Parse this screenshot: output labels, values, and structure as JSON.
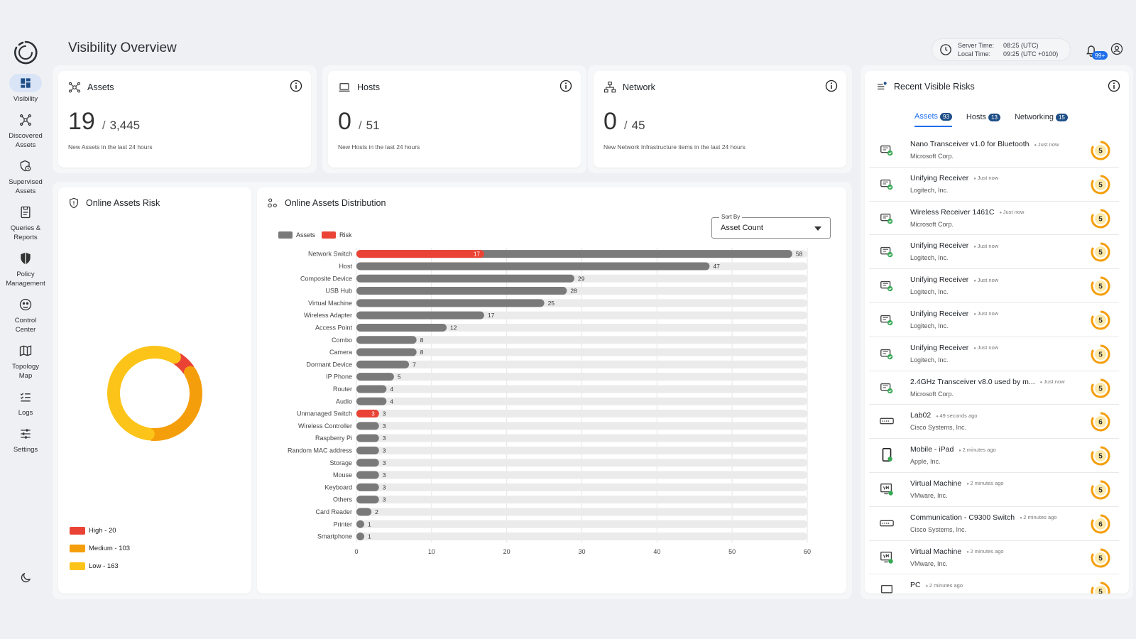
{
  "page": {
    "title": "Visibility Overview"
  },
  "nav": [
    {
      "label": "Visibility",
      "icon": "dashboard-icon",
      "active": true
    },
    {
      "label": "Discovered\nAssets",
      "icon": "network-nodes-icon"
    },
    {
      "label": "Supervised\nAssets",
      "icon": "shield-clock-icon"
    },
    {
      "label": "Queries &\nReports",
      "icon": "report-icon"
    },
    {
      "label": "Policy\nManagement",
      "icon": "policy-shield-icon"
    },
    {
      "label": "Control\nCenter",
      "icon": "control-center-icon"
    },
    {
      "label": "Topology\nMap",
      "icon": "map-icon"
    },
    {
      "label": "Logs",
      "icon": "logs-icon"
    },
    {
      "label": "Settings",
      "icon": "sliders-icon"
    }
  ],
  "header": {
    "server_label": "Server Time:",
    "server_value": "08:25 (UTC)",
    "local_label": "Local Time:",
    "local_value": "09:25 (UTC +0100)",
    "notifications": "99+"
  },
  "cards": {
    "assets": {
      "title": "Assets",
      "value": "19",
      "total": "3,445",
      "subtitle": "New Assets in the last 24 hours"
    },
    "hosts": {
      "title": "Hosts",
      "value": "0",
      "total": "51",
      "subtitle": "New Hosts in the last 24 hours"
    },
    "network": {
      "title": "Network",
      "value": "0",
      "total": "45",
      "subtitle": "New Network Infrastructure items in the last 24 hours"
    }
  },
  "risk_panel": {
    "title": "Online Assets Risk",
    "legend": [
      {
        "label": "High - 20",
        "value": 20,
        "color": "#ea4335"
      },
      {
        "label": "Medium - 103",
        "value": 103,
        "color": "#f59e0b"
      },
      {
        "label": "Low - 163",
        "value": 163,
        "color": "#fcc419"
      }
    ]
  },
  "distribution": {
    "title": "Online Assets Distribution",
    "sort_label": "Sort By",
    "sort_value": "Asset Count"
  },
  "chart_data": {
    "type": "bar",
    "orientation": "horizontal",
    "categories": [
      "Network Switch",
      "Host",
      "Composite Device",
      "USB Hub",
      "Virtual Machine",
      "Wireless Adapter",
      "Access Point",
      "Combo",
      "Camera",
      "Dormant Device",
      "IP Phone",
      "Router",
      "Audio",
      "Unmanaged Switch",
      "Wireless Controller",
      "Raspberry Pi",
      "Random MAC address",
      "Storage",
      "Mouse",
      "Keyboard",
      "Others",
      "Card Reader",
      "Printer",
      "Smartphone"
    ],
    "series": [
      {
        "name": "Assets",
        "color": "#7a7a7a",
        "values": [
          58,
          47,
          29,
          28,
          25,
          17,
          12,
          8,
          8,
          7,
          5,
          4,
          4,
          3,
          3,
          3,
          3,
          3,
          3,
          3,
          3,
          2,
          1,
          1
        ]
      },
      {
        "name": "Risk",
        "color": "#ea4335",
        "values": [
          17,
          0,
          0,
          0,
          0,
          0,
          0,
          0,
          0,
          0,
          0,
          0,
          0,
          3,
          0,
          0,
          0,
          0,
          0,
          0,
          0,
          0,
          0,
          0
        ]
      }
    ],
    "xlim": [
      0,
      60
    ],
    "xticks": [
      "0",
      "10",
      "20",
      "30",
      "40",
      "50",
      "60"
    ],
    "legend_position": "top-left"
  },
  "recent": {
    "title": "Recent Visible Risks",
    "tabs": [
      {
        "label": "Assets",
        "count": "93",
        "active": true
      },
      {
        "label": "Hosts",
        "count": "13"
      },
      {
        "label": "Networking",
        "count": "15"
      }
    ],
    "items": [
      {
        "name": "Nano Transceiver v1.0 for Bluetooth",
        "time": "Just now",
        "vendor": "Microsoft Corp.",
        "score": "5",
        "icon": "usb-device-icon"
      },
      {
        "name": "Unifying Receiver",
        "time": "Just now",
        "vendor": "Logitech, Inc.",
        "score": "5",
        "icon": "usb-device-icon"
      },
      {
        "name": "Wireless Receiver 1461C",
        "time": "Just now",
        "vendor": "Microsoft Corp.",
        "score": "5",
        "icon": "usb-device-icon"
      },
      {
        "name": "Unifying Receiver",
        "time": "Just now",
        "vendor": "Logitech, Inc.",
        "score": "5",
        "icon": "usb-device-icon"
      },
      {
        "name": "Unifying Receiver",
        "time": "Just now",
        "vendor": "Logitech, Inc.",
        "score": "5",
        "icon": "usb-device-icon"
      },
      {
        "name": "Unifying Receiver",
        "time": "Just now",
        "vendor": "Logitech, Inc.",
        "score": "5",
        "icon": "usb-device-icon"
      },
      {
        "name": "Unifying Receiver",
        "time": "Just now",
        "vendor": "Logitech, Inc.",
        "score": "5",
        "icon": "usb-device-icon"
      },
      {
        "name": "2.4GHz Transceiver v8.0 used by m...",
        "time": "Just now",
        "vendor": "Microsoft Corp.",
        "score": "5",
        "icon": "usb-device-icon"
      },
      {
        "name": "Lab02",
        "time": "49 seconds ago",
        "vendor": "Cisco Systems, Inc.",
        "score": "6",
        "icon": "switch-device-icon"
      },
      {
        "name": "Mobile - iPad",
        "time": "2 minutes ago",
        "vendor": "Apple, Inc.",
        "score": "5",
        "icon": "tablet-icon"
      },
      {
        "name": "Virtual Machine",
        "time": "2 minutes ago",
        "vendor": "VMware, Inc.",
        "score": "5",
        "icon": "vm-icon"
      },
      {
        "name": "Communication - C9300 Switch",
        "time": "2 minutes ago",
        "vendor": "Cisco Systems, Inc.",
        "score": "6",
        "icon": "switch-device-icon"
      },
      {
        "name": "Virtual Machine",
        "time": "2 minutes ago",
        "vendor": "VMware, Inc.",
        "score": "5",
        "icon": "vm-icon"
      },
      {
        "name": "PC",
        "time": "2 minutes ago",
        "vendor": "",
        "score": "5",
        "icon": "pc-icon"
      }
    ]
  }
}
